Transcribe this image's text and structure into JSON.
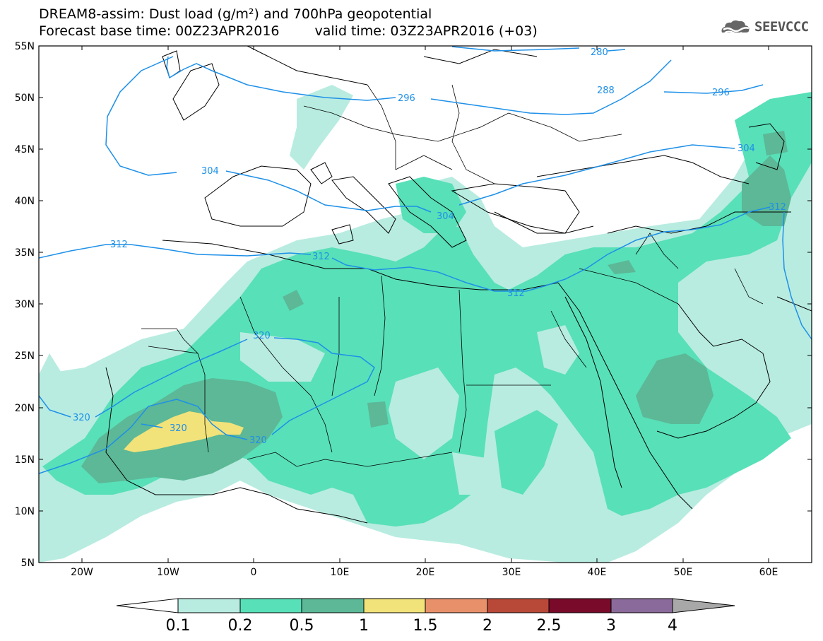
{
  "header": {
    "title_line1": "DREAM8-assim: Dust load (g/m²) and 700hPa geopotential",
    "base_time": "Forecast base time: 00Z23APR2016",
    "valid_time": "valid time: 03Z23APR2016 (+03)",
    "logo_text": "SEEVCCC",
    "logo_icon": "cloud-wave-icon"
  },
  "map": {
    "lat_labels": [
      "55N",
      "50N",
      "45N",
      "40N",
      "35N",
      "30N",
      "25N",
      "20N",
      "15N",
      "10N",
      "5N"
    ],
    "lon_labels": [
      "20W",
      "10W",
      "0",
      "10E",
      "20E",
      "30E",
      "40E",
      "50E",
      "60E"
    ],
    "contour_labels": [
      "280",
      "288",
      "296",
      "296",
      "304",
      "304",
      "304",
      "312",
      "312",
      "312",
      "312",
      "320",
      "320",
      "320",
      "320"
    ]
  },
  "legend": {
    "levels": [
      "0.1",
      "0.2",
      "0.5",
      "1",
      "1.5",
      "2",
      "2.5",
      "3",
      "4"
    ],
    "colors": [
      "#ffffff",
      "#b8ece0",
      "#58e0b8",
      "#5cb896",
      "#f2e27a",
      "#e8906a",
      "#b84838",
      "#7a0a2a",
      "#8a6a9a",
      "#a8a8a8"
    ]
  },
  "colors": {
    "dust_01": "#b8ece0",
    "dust_02": "#58e0b8",
    "dust_05": "#5cb896",
    "dust_1": "#f2e27a",
    "contour": "#1e90e8"
  }
}
